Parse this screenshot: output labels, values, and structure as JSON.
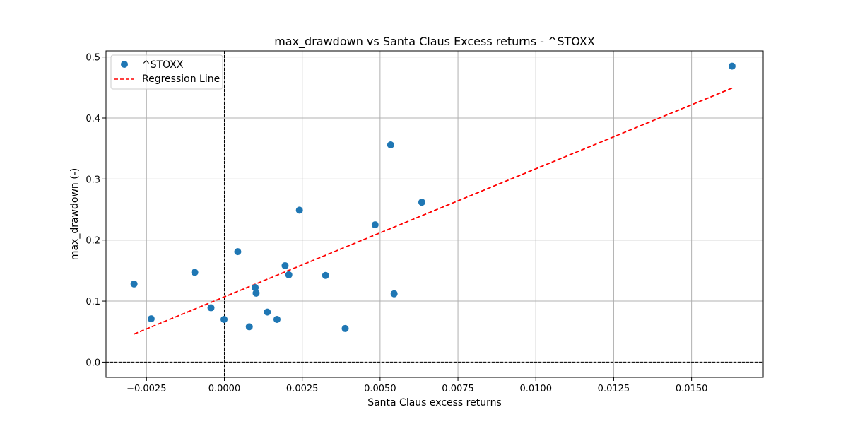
{
  "chart_data": {
    "type": "scatter",
    "title": "max_drawdown vs Santa Claus Excess returns - ^STOXX",
    "xlabel": "Santa Claus excess returns",
    "ylabel": "max_drawdown (-)",
    "xlim": [
      -0.0038,
      0.0173
    ],
    "ylim": [
      -0.025,
      0.51
    ],
    "x_ticks": [
      -0.0025,
      0,
      0.0025,
      0.005,
      0.0075,
      0.01,
      0.0125,
      0.015
    ],
    "x_tick_labels": [
      "−0.0025",
      "0.0000",
      "0.0025",
      "0.0050",
      "0.0075",
      "0.0100",
      "0.0125",
      "0.0150"
    ],
    "y_ticks": [
      0,
      0.1,
      0.2,
      0.3,
      0.4,
      0.5
    ],
    "y_tick_labels": [
      "0.0",
      "0.1",
      "0.2",
      "0.3",
      "0.4",
      "0.5"
    ],
    "grid": true,
    "legend_position": "top-left",
    "reference_lines": {
      "x": 0,
      "y": 0
    },
    "series": [
      {
        "name": "^STOXX",
        "kind": "scatter",
        "color": "#1f77b4",
        "x": [
          -0.0029,
          -0.00235,
          -0.00095,
          -0.00043,
          -1e-05,
          0.00043,
          0.0008,
          0.00099,
          0.00102,
          0.00138,
          0.00169,
          0.00195,
          0.00207,
          0.00241,
          0.00325,
          0.00388,
          0.00484,
          0.00534,
          0.00545,
          0.00634,
          0.0163
        ],
        "y": [
          0.128,
          0.071,
          0.147,
          0.089,
          0.07,
          0.181,
          0.058,
          0.122,
          0.113,
          0.082,
          0.07,
          0.158,
          0.143,
          0.249,
          0.142,
          0.055,
          0.225,
          0.356,
          0.112,
          0.262,
          0.485
        ]
      },
      {
        "name": "Regression Line",
        "kind": "line",
        "style": "dashed",
        "color": "#ff0000",
        "x": [
          -0.0029,
          0.0163
        ],
        "y": [
          0.046,
          0.449
        ]
      }
    ]
  }
}
